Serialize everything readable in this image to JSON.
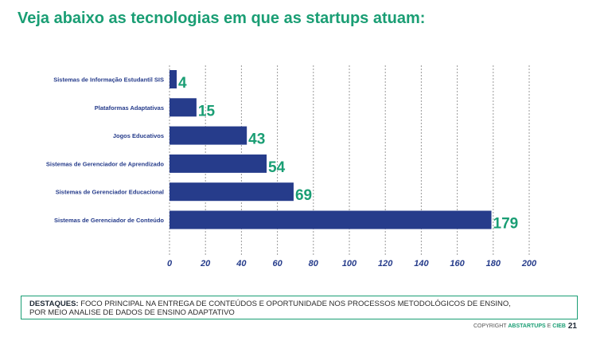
{
  "page": {
    "title": "Veja abaixo as tecnologias em que as startups atuam:",
    "highlights_label": "DESTAQUES:",
    "highlights_line1": "FOCO PRINCIPAL NA ENTREGA DE CONTEÚDOS E OPORTUNIDADE NOS PROCESSOS METODOLÓGICOS DE ENSINO,",
    "highlights_line2": "POR MEIO ANALISE DE DADOS DE ENSINO ADAPTATIVO",
    "footer_prefix": "COPYRIGHT ",
    "footer_brand1": "ABSTARTUPS",
    "footer_mid": " E ",
    "footer_brand2": "CIEB",
    "page_number": "21"
  },
  "colors": {
    "bar": "#263c8b",
    "value_label": "#1a9e74",
    "category_label": "#263c8b",
    "tick_label": "#263c8b",
    "grid": "#9a9a9a",
    "accent": "#1a9e74"
  },
  "chart_data": {
    "type": "bar",
    "orientation": "horizontal",
    "categories": [
      "Sistemas de Informação Estudantil SIS",
      "Plataformas Adaptativas",
      "Jogos Educativos",
      "Sistemas de Gerenciador de Aprendizado",
      "Sistemas de Gerenciador Educacional",
      "Sistemas de Gerenciador de Conteúdo"
    ],
    "values": [
      4,
      15,
      43,
      54,
      69,
      179
    ],
    "xlim": [
      0,
      200
    ],
    "xticks": [
      0,
      20,
      40,
      60,
      80,
      100,
      120,
      140,
      160,
      180,
      200
    ],
    "grid": "vertical dashed",
    "title": "",
    "xlabel": "",
    "ylabel": ""
  }
}
